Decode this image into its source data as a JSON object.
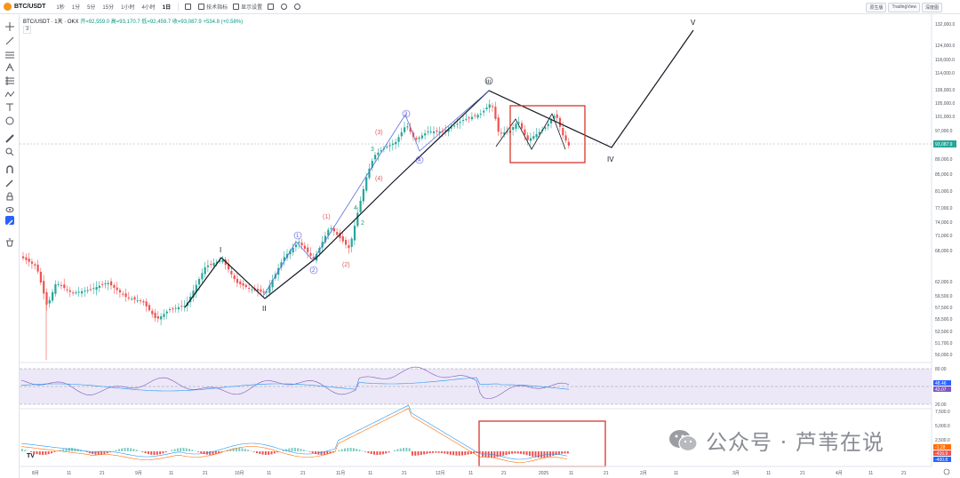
{
  "toolbar": {
    "symbol": "BTC/USDT",
    "timeframes": [
      "1秒",
      "1分",
      "5分",
      "15分",
      "1小时",
      "4小时",
      "1日"
    ],
    "active_timeframe": "1日",
    "indicators_label": "技术指标",
    "display_label": "显示设置",
    "right_buttons": [
      "原生版",
      "TradingView",
      "深度图"
    ]
  },
  "legend": {
    "title": "BTC/USDT · 1天 · OKX",
    "open": "开=92,559.0",
    "high": "高=93,170.7",
    "low": "低=92,459.7",
    "close": "收=93,087.9",
    "change": "+534.8 (+0.58%)",
    "indicator_count": "3"
  },
  "price_axis": {
    "labels": [
      "132,000.0",
      "124,000.0",
      "118,000.0",
      "114,000.0",
      "109,000.0",
      "105,000.0",
      "101,000.0",
      "97,000.0",
      "89,000.0",
      "85,000.0",
      "81,000.0",
      "77,000.0",
      "74,000.0",
      "71,000.0",
      "68,000.0",
      "62,000.0",
      "59,500.0",
      "57,500.0",
      "55,500.0",
      "53,500.0",
      "51,700.0",
      "50,000.0"
    ],
    "current_price": "93,087.9"
  },
  "rsi_axis": {
    "labels": [
      "80.00",
      "20.00"
    ],
    "badges": [
      "48.46",
      "43.07"
    ]
  },
  "macd_axis": {
    "labels": [
      "7,500.0",
      "5,000.0",
      "2,500.0",
      "0.00"
    ],
    "badges": [
      "-1.28",
      "-416.9",
      "-400.8"
    ]
  },
  "time_axis": {
    "labels": [
      "8月",
      "11",
      "21",
      "9月",
      "11",
      "21",
      "10月",
      "11",
      "21",
      "11月",
      "11",
      "21",
      "12月",
      "11",
      "21",
      "2025",
      "11",
      "21",
      "2月",
      "11",
      "3月",
      "11",
      "21",
      "4月",
      "11",
      "21"
    ]
  },
  "waves": {
    "major": [
      "I",
      "II",
      "III",
      "IV",
      "V"
    ],
    "minor_circled": [
      "1",
      "2",
      "3",
      "4"
    ],
    "red": [
      "(1)",
      "(2)",
      "(3)",
      "(4)"
    ],
    "green": [
      "2",
      "3",
      "4"
    ]
  },
  "tv_logo": "TV",
  "watermark": "公众号 · 芦苇在说",
  "colors": {
    "up": "#26a69a",
    "down": "#ef5350",
    "box": "#d9352b",
    "rsi_band": "#ece8f7"
  }
}
